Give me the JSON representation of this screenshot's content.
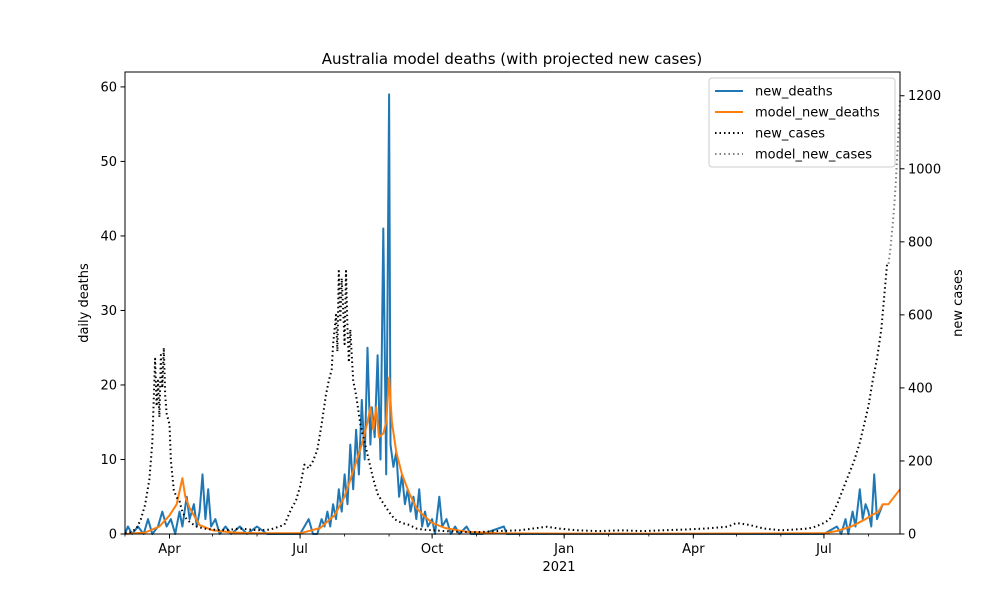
{
  "chart_data": {
    "type": "line",
    "title": "Australia model deaths (with projected new cases)",
    "xlabel": "",
    "ylabel_left": "daily deaths",
    "ylabel_right": "new cases",
    "x_tick_labels": [
      "Apr",
      "Jul",
      "Oct",
      "Jan",
      "Apr",
      "Jul"
    ],
    "x_tick_dates": [
      "2020-04-01",
      "2020-07-01",
      "2020-10-01",
      "2021-01-01",
      "2021-04-01",
      "2021-07-01"
    ],
    "x_year_label": "2021",
    "xlim": [
      "2020-03-01",
      "2021-08-23"
    ],
    "ylim_left": [
      0,
      62
    ],
    "ylim_right": [
      0,
      1265
    ],
    "y_left_ticks": [
      "0",
      "10",
      "20",
      "30",
      "40",
      "50",
      "60"
    ],
    "y_right_ticks": [
      "0",
      "200",
      "400",
      "600",
      "800",
      "1000",
      "1200"
    ],
    "legend_position": "top-right",
    "grid": false,
    "series": [
      {
        "name": "new_deaths",
        "axis": "left",
        "color": "#1f77b4",
        "style": "solid",
        "points": [
          [
            "2020-03-01",
            0
          ],
          [
            "2020-03-03",
            1
          ],
          [
            "2020-03-06",
            0
          ],
          [
            "2020-03-10",
            1
          ],
          [
            "2020-03-14",
            0
          ],
          [
            "2020-03-17",
            2
          ],
          [
            "2020-03-20",
            0
          ],
          [
            "2020-03-24",
            1
          ],
          [
            "2020-03-27",
            3
          ],
          [
            "2020-03-30",
            1
          ],
          [
            "2020-04-02",
            2
          ],
          [
            "2020-04-05",
            0
          ],
          [
            "2020-04-08",
            3
          ],
          [
            "2020-04-10",
            1
          ],
          [
            "2020-04-13",
            5
          ],
          [
            "2020-04-15",
            2
          ],
          [
            "2020-04-18",
            4
          ],
          [
            "2020-04-20",
            1
          ],
          [
            "2020-04-22",
            3
          ],
          [
            "2020-04-24",
            8
          ],
          [
            "2020-04-26",
            2
          ],
          [
            "2020-04-28",
            6
          ],
          [
            "2020-04-30",
            1
          ],
          [
            "2020-05-03",
            2
          ],
          [
            "2020-05-06",
            0
          ],
          [
            "2020-05-10",
            1
          ],
          [
            "2020-05-14",
            0
          ],
          [
            "2020-05-20",
            1
          ],
          [
            "2020-05-25",
            0
          ],
          [
            "2020-06-01",
            1
          ],
          [
            "2020-06-08",
            0
          ],
          [
            "2020-06-20",
            0
          ],
          [
            "2020-07-01",
            0
          ],
          [
            "2020-07-07",
            2
          ],
          [
            "2020-07-10",
            0
          ],
          [
            "2020-07-13",
            0
          ],
          [
            "2020-07-16",
            2
          ],
          [
            "2020-07-18",
            1
          ],
          [
            "2020-07-20",
            3
          ],
          [
            "2020-07-22",
            1
          ],
          [
            "2020-07-24",
            4
          ],
          [
            "2020-07-26",
            2
          ],
          [
            "2020-07-28",
            6
          ],
          [
            "2020-07-30",
            3
          ],
          [
            "2020-08-01",
            8
          ],
          [
            "2020-08-03",
            4
          ],
          [
            "2020-08-05",
            12
          ],
          [
            "2020-08-07",
            6
          ],
          [
            "2020-08-09",
            14
          ],
          [
            "2020-08-11",
            8
          ],
          [
            "2020-08-13",
            18
          ],
          [
            "2020-08-15",
            10
          ],
          [
            "2020-08-17",
            25
          ],
          [
            "2020-08-19",
            12
          ],
          [
            "2020-08-20",
            17
          ],
          [
            "2020-08-22",
            13
          ],
          [
            "2020-08-24",
            24
          ],
          [
            "2020-08-26",
            10
          ],
          [
            "2020-08-28",
            41
          ],
          [
            "2020-08-30",
            8
          ],
          [
            "2020-09-01",
            59
          ],
          [
            "2020-09-02",
            12
          ],
          [
            "2020-09-04",
            9
          ],
          [
            "2020-09-06",
            11
          ],
          [
            "2020-09-08",
            5
          ],
          [
            "2020-09-10",
            8
          ],
          [
            "2020-09-12",
            4
          ],
          [
            "2020-09-14",
            6
          ],
          [
            "2020-09-16",
            3
          ],
          [
            "2020-09-18",
            5
          ],
          [
            "2020-09-20",
            2
          ],
          [
            "2020-09-22",
            6
          ],
          [
            "2020-09-24",
            1
          ],
          [
            "2020-09-26",
            3
          ],
          [
            "2020-09-28",
            1
          ],
          [
            "2020-10-01",
            2
          ],
          [
            "2020-10-03",
            0
          ],
          [
            "2020-10-06",
            5
          ],
          [
            "2020-10-08",
            1
          ],
          [
            "2020-10-11",
            2
          ],
          [
            "2020-10-14",
            0
          ],
          [
            "2020-10-17",
            1
          ],
          [
            "2020-10-20",
            0
          ],
          [
            "2020-10-25",
            1
          ],
          [
            "2020-10-28",
            0
          ],
          [
            "2020-11-05",
            0
          ],
          [
            "2020-11-20",
            1
          ],
          [
            "2020-11-22",
            0
          ],
          [
            "2020-12-15",
            0
          ],
          [
            "2021-01-01",
            0
          ],
          [
            "2021-03-01",
            0
          ],
          [
            "2021-05-01",
            0
          ],
          [
            "2021-07-01",
            0
          ],
          [
            "2021-07-10",
            1
          ],
          [
            "2021-07-13",
            0
          ],
          [
            "2021-07-16",
            2
          ],
          [
            "2021-07-18",
            0
          ],
          [
            "2021-07-21",
            3
          ],
          [
            "2021-07-23",
            1
          ],
          [
            "2021-07-26",
            6
          ],
          [
            "2021-07-28",
            2
          ],
          [
            "2021-07-30",
            4
          ],
          [
            "2021-08-01",
            3
          ],
          [
            "2021-08-03",
            1
          ],
          [
            "2021-08-05",
            8
          ],
          [
            "2021-08-07",
            2
          ],
          [
            "2021-08-09",
            3
          ],
          [
            "2021-08-11",
            4
          ]
        ]
      },
      {
        "name": "model_new_deaths",
        "axis": "left",
        "color": "#ff7f0e",
        "style": "solid",
        "points": [
          [
            "2020-03-01",
            0
          ],
          [
            "2020-03-15",
            0.2
          ],
          [
            "2020-03-25",
            1
          ],
          [
            "2020-04-01",
            2.5
          ],
          [
            "2020-04-06",
            4
          ],
          [
            "2020-04-10",
            7.5
          ],
          [
            "2020-04-12",
            5
          ],
          [
            "2020-04-15",
            3.5
          ],
          [
            "2020-04-18",
            2.5
          ],
          [
            "2020-04-22",
            1.2
          ],
          [
            "2020-05-01",
            0.5
          ],
          [
            "2020-05-15",
            0.2
          ],
          [
            "2020-06-01",
            0.1
          ],
          [
            "2020-07-01",
            0.1
          ],
          [
            "2020-07-15",
            0.8
          ],
          [
            "2020-07-25",
            2.5
          ],
          [
            "2020-08-01",
            5
          ],
          [
            "2020-08-08",
            9
          ],
          [
            "2020-08-13",
            12
          ],
          [
            "2020-08-17",
            15
          ],
          [
            "2020-08-19",
            17
          ],
          [
            "2020-08-21",
            14
          ],
          [
            "2020-08-23",
            17
          ],
          [
            "2020-08-25",
            13
          ],
          [
            "2020-08-28",
            13.5
          ],
          [
            "2020-08-30",
            15
          ],
          [
            "2020-09-01",
            21
          ],
          [
            "2020-09-03",
            15
          ],
          [
            "2020-09-06",
            11
          ],
          [
            "2020-09-10",
            8
          ],
          [
            "2020-09-15",
            5.5
          ],
          [
            "2020-09-20",
            3.5
          ],
          [
            "2020-09-25",
            2.5
          ],
          [
            "2020-10-01",
            1.5
          ],
          [
            "2020-10-10",
            0.8
          ],
          [
            "2020-10-25",
            0.3
          ],
          [
            "2020-11-15",
            0.1
          ],
          [
            "2021-01-01",
            0.05
          ],
          [
            "2021-04-01",
            0.05
          ],
          [
            "2021-07-01",
            0.1
          ],
          [
            "2021-07-10",
            0.4
          ],
          [
            "2021-07-20",
            1
          ],
          [
            "2021-07-25",
            1.5
          ],
          [
            "2021-07-30",
            2
          ],
          [
            "2021-08-03",
            2.5
          ],
          [
            "2021-08-08",
            3
          ],
          [
            "2021-08-11",
            4
          ],
          [
            "2021-08-15",
            4
          ],
          [
            "2021-08-19",
            5
          ],
          [
            "2021-08-23",
            6
          ]
        ]
      },
      {
        "name": "new_cases",
        "axis": "right",
        "color": "#000000",
        "style": "dotted",
        "points": [
          [
            "2020-03-01",
            2
          ],
          [
            "2020-03-05",
            5
          ],
          [
            "2020-03-09",
            15
          ],
          [
            "2020-03-12",
            40
          ],
          [
            "2020-03-15",
            80
          ],
          [
            "2020-03-18",
            150
          ],
          [
            "2020-03-20",
            250
          ],
          [
            "2020-03-22",
            480
          ],
          [
            "2020-03-23",
            350
          ],
          [
            "2020-03-24",
            420
          ],
          [
            "2020-03-25",
            320
          ],
          [
            "2020-03-26",
            490
          ],
          [
            "2020-03-27",
            400
          ],
          [
            "2020-03-28",
            510
          ],
          [
            "2020-03-29",
            380
          ],
          [
            "2020-03-30",
            330
          ],
          [
            "2020-04-01",
            300
          ],
          [
            "2020-04-02",
            200
          ],
          [
            "2020-04-04",
            120
          ],
          [
            "2020-04-06",
            100
          ],
          [
            "2020-04-08",
            90
          ],
          [
            "2020-04-10",
            60
          ],
          [
            "2020-04-13",
            40
          ],
          [
            "2020-04-16",
            30
          ],
          [
            "2020-04-20",
            20
          ],
          [
            "2020-04-25",
            15
          ],
          [
            "2020-05-01",
            12
          ],
          [
            "2020-05-10",
            10
          ],
          [
            "2020-05-20",
            15
          ],
          [
            "2020-06-01",
            10
          ],
          [
            "2020-06-10",
            12
          ],
          [
            "2020-06-20",
            25
          ],
          [
            "2020-06-25",
            70
          ],
          [
            "2020-06-28",
            90
          ],
          [
            "2020-07-01",
            130
          ],
          [
            "2020-07-04",
            190
          ],
          [
            "2020-07-07",
            180
          ],
          [
            "2020-07-10",
            200
          ],
          [
            "2020-07-13",
            230
          ],
          [
            "2020-07-16",
            300
          ],
          [
            "2020-07-19",
            380
          ],
          [
            "2020-07-21",
            420
          ],
          [
            "2020-07-23",
            450
          ],
          [
            "2020-07-24",
            520
          ],
          [
            "2020-07-26",
            600
          ],
          [
            "2020-07-27",
            500
          ],
          [
            "2020-07-28",
            720
          ],
          [
            "2020-07-29",
            580
          ],
          [
            "2020-07-30",
            700
          ],
          [
            "2020-07-31",
            620
          ],
          [
            "2020-08-01",
            520
          ],
          [
            "2020-08-02",
            720
          ],
          [
            "2020-08-03",
            560
          ],
          [
            "2020-08-04",
            470
          ],
          [
            "2020-08-05",
            560
          ],
          [
            "2020-08-07",
            420
          ],
          [
            "2020-08-09",
            380
          ],
          [
            "2020-08-12",
            300
          ],
          [
            "2020-08-15",
            250
          ],
          [
            "2020-08-18",
            200
          ],
          [
            "2020-08-21",
            150
          ],
          [
            "2020-08-24",
            110
          ],
          [
            "2020-08-27",
            90
          ],
          [
            "2020-09-01",
            60
          ],
          [
            "2020-09-05",
            40
          ],
          [
            "2020-09-10",
            30
          ],
          [
            "2020-09-15",
            25
          ],
          [
            "2020-09-20",
            15
          ],
          [
            "2020-09-25",
            12
          ],
          [
            "2020-10-01",
            10
          ],
          [
            "2020-10-10",
            8
          ],
          [
            "2020-10-20",
            6
          ],
          [
            "2020-11-01",
            5
          ],
          [
            "2020-11-15",
            8
          ],
          [
            "2020-12-01",
            10
          ],
          [
            "2020-12-20",
            20
          ],
          [
            "2020-12-28",
            15
          ],
          [
            "2021-01-10",
            10
          ],
          [
            "2021-01-25",
            8
          ],
          [
            "2021-02-10",
            10
          ],
          [
            "2021-02-25",
            8
          ],
          [
            "2021-03-10",
            10
          ],
          [
            "2021-03-25",
            12
          ],
          [
            "2021-04-10",
            15
          ],
          [
            "2021-04-25",
            20
          ],
          [
            "2021-05-01",
            30
          ],
          [
            "2021-05-10",
            25
          ],
          [
            "2021-05-20",
            15
          ],
          [
            "2021-06-01",
            10
          ],
          [
            "2021-06-10",
            12
          ],
          [
            "2021-06-20",
            15
          ],
          [
            "2021-06-25",
            20
          ],
          [
            "2021-07-01",
            30
          ],
          [
            "2021-07-05",
            40
          ],
          [
            "2021-07-10",
            80
          ],
          [
            "2021-07-14",
            120
          ],
          [
            "2021-07-18",
            160
          ],
          [
            "2021-07-22",
            200
          ],
          [
            "2021-07-26",
            250
          ],
          [
            "2021-07-29",
            300
          ],
          [
            "2021-08-01",
            350
          ],
          [
            "2021-08-04",
            420
          ],
          [
            "2021-08-07",
            480
          ],
          [
            "2021-08-10",
            560
          ],
          [
            "2021-08-12",
            650
          ],
          [
            "2021-08-14",
            740
          ],
          [
            "2021-08-15",
            740
          ]
        ]
      },
      {
        "name": "model_new_cases",
        "axis": "right",
        "color": "#808080",
        "style": "dotted",
        "points": [
          [
            "2021-08-15",
            740
          ],
          [
            "2021-08-16",
            770
          ],
          [
            "2021-08-17",
            810
          ],
          [
            "2021-08-18",
            850
          ],
          [
            "2021-08-19",
            900
          ],
          [
            "2021-08-20",
            960
          ],
          [
            "2021-08-21",
            1030
          ],
          [
            "2021-08-22",
            1110
          ],
          [
            "2021-08-23",
            1190
          ]
        ]
      }
    ]
  }
}
